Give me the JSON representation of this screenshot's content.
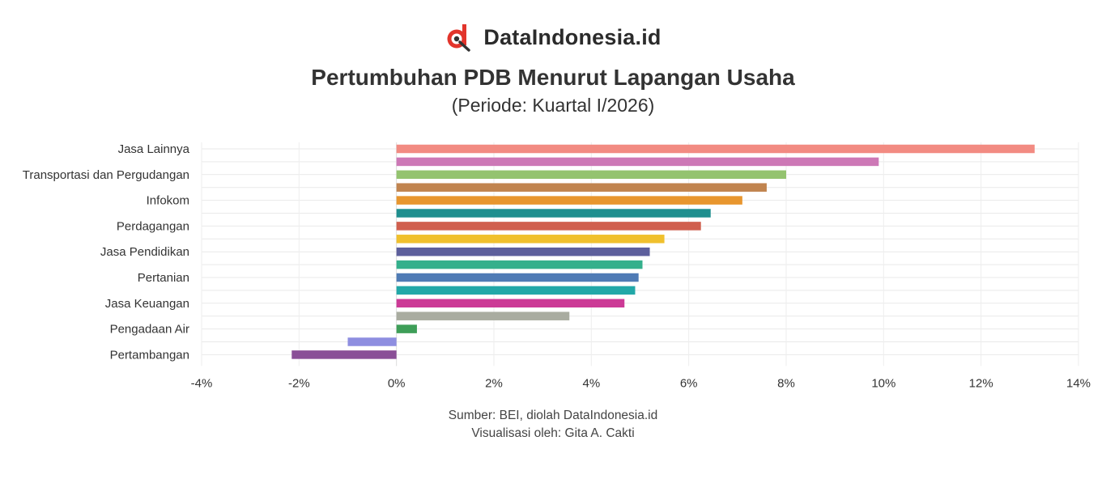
{
  "brand": {
    "name": "DataIndonesia.id",
    "logo_icon": "dataindonesia-logo-icon",
    "logo_color": "#e2342b"
  },
  "header": {
    "title": "Pertumbuhan PDB Menurut Lapangan Usaha",
    "subtitle": "(Periode: Kuartal I/2026)"
  },
  "chart_data": {
    "type": "bar",
    "orientation": "horizontal",
    "x_tick_labels": [
      "-4%",
      "-2%",
      "0%",
      "2%",
      "4%",
      "6%",
      "8%",
      "10%",
      "12%",
      "14%"
    ],
    "x_ticks": [
      -4,
      -2,
      0,
      2,
      4,
      6,
      8,
      10,
      12,
      14
    ],
    "xlim": [
      -4,
      14
    ],
    "grid": true,
    "categories": [
      "Jasa Lainnya",
      "",
      "Transportasi dan Pergudangan",
      "",
      "Infokom",
      "",
      "Perdagangan",
      "",
      "Jasa Pendidikan",
      "",
      "Pertanian",
      "",
      "Jasa Keuangan",
      "",
      "Pengadaan Air",
      "",
      "Pertambangan"
    ],
    "values": [
      13.1,
      9.9,
      8.0,
      7.6,
      7.1,
      6.45,
      6.25,
      5.5,
      5.2,
      5.05,
      4.97,
      4.9,
      4.68,
      3.55,
      0.42,
      -1.0,
      -2.15
    ],
    "colors": [
      "#f28b82",
      "#cd78b6",
      "#94c36f",
      "#c1844f",
      "#e8962e",
      "#1f8f8f",
      "#d05f4e",
      "#f0c02d",
      "#5d5f9c",
      "#34b08c",
      "#4f7bb5",
      "#22a8a8",
      "#cc3a96",
      "#a9aca0",
      "#3e9e58",
      "#8e8ee0",
      "#8a4f97"
    ]
  },
  "footer": {
    "source": "Sumber: BEI, diolah DataIndonesia.id",
    "credit": "Visualisasi oleh: Gita A. Cakti"
  }
}
